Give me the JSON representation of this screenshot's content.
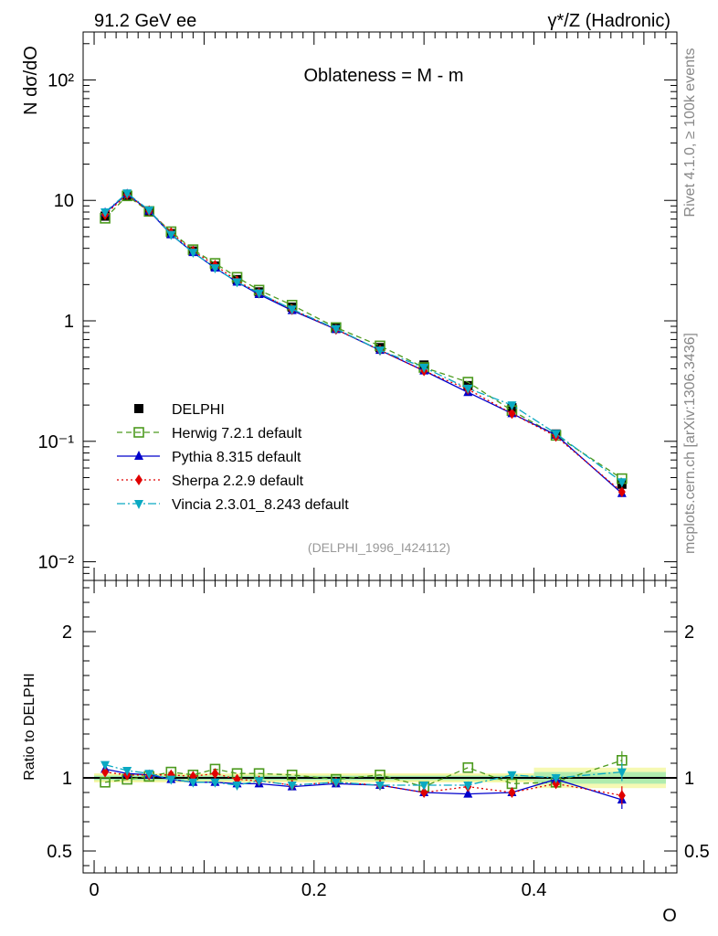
{
  "header": {
    "left": "91.2 GeV ee",
    "right": "γ*/Z (Hadronic)"
  },
  "side_labels": {
    "rivet": "Rivet 4.1.0, ≥ 100k events",
    "mcplots": "mcplots.cern.ch [arXiv:1306.3436]"
  },
  "chart_data": {
    "type": "line",
    "title": "Oblateness = M - m",
    "analysis_tag": "(DELPHI_1996_I424112)",
    "xlabel": "O",
    "ylabel": "N  dσ/dO",
    "ratio_ylabel": "Ratio to DELPHI",
    "xlim": [
      -0.01,
      0.53
    ],
    "ylim": [
      0.007,
      250
    ],
    "yscale": "log",
    "ratio_ylim": [
      0.35,
      2.35
    ],
    "x_ticks": [
      "0",
      "0.2",
      "0.4"
    ],
    "y_ticks": [
      "10⁻²",
      "10⁻¹",
      "1",
      "10",
      "10²"
    ],
    "ratio_ticks": [
      "0.5",
      "1",
      "2"
    ],
    "x": [
      0.01,
      0.03,
      0.05,
      0.07,
      0.09,
      0.11,
      0.13,
      0.15,
      0.18,
      0.22,
      0.26,
      0.3,
      0.34,
      0.38,
      0.42,
      0.48
    ],
    "series": [
      {
        "name": "DELPHI",
        "color": "#000000",
        "marker": "square-filled",
        "values": [
          7.4,
          11.0,
          8.0,
          5.3,
          3.8,
          2.85,
          2.2,
          1.74,
          1.3,
          0.88,
          0.6,
          0.43,
          0.29,
          0.19,
          0.115,
          0.044
        ]
      },
      {
        "name": "Herwig 7.2.1 default",
        "color": "#4c9a1e",
        "marker": "square-open",
        "dash": "6,4",
        "values": [
          7.1,
          10.9,
          8.1,
          5.5,
          3.9,
          3.0,
          2.3,
          1.8,
          1.35,
          0.88,
          0.62,
          0.41,
          0.31,
          0.18,
          0.112,
          0.049
        ]
      },
      {
        "name": "Pythia 8.315 default",
        "color": "#0000cc",
        "marker": "triangle-up",
        "dash": "",
        "values": [
          7.9,
          11.3,
          8.2,
          5.2,
          3.7,
          2.75,
          2.1,
          1.66,
          1.22,
          0.85,
          0.57,
          0.385,
          0.255,
          0.17,
          0.113,
          0.037
        ]
      },
      {
        "name": "Sherpa 2.2.9 default",
        "color": "#e00000",
        "marker": "diamond",
        "dash": "2,3",
        "values": [
          7.6,
          11.2,
          8.2,
          5.4,
          3.8,
          2.9,
          2.15,
          1.7,
          1.24,
          0.85,
          0.57,
          0.385,
          0.27,
          0.17,
          0.11,
          0.038
        ]
      },
      {
        "name": "Vincia 2.3.01_8.243 default",
        "color": "#0aa9c2",
        "marker": "triangle-down",
        "dash": "9,3,2,3",
        "values": [
          8.0,
          11.5,
          8.3,
          5.2,
          3.7,
          2.75,
          2.1,
          1.7,
          1.25,
          0.86,
          0.57,
          0.41,
          0.275,
          0.2,
          0.116,
          0.046
        ]
      }
    ],
    "ratios": [
      {
        "name": "Herwig 7.2.1 default",
        "values": [
          0.97,
          0.99,
          1.01,
          1.04,
          1.02,
          1.06,
          1.03,
          1.03,
          1.02,
          0.99,
          1.02,
          0.94,
          1.07,
          0.96,
          0.97,
          1.12
        ]
      },
      {
        "name": "Pythia 8.315 default",
        "values": [
          1.06,
          1.03,
          1.02,
          0.99,
          0.97,
          0.97,
          0.96,
          0.96,
          0.94,
          0.96,
          0.95,
          0.9,
          0.89,
          0.9,
          0.99,
          0.85
        ]
      },
      {
        "name": "Sherpa 2.2.9 default",
        "values": [
          1.04,
          1.02,
          1.02,
          1.02,
          1.01,
          1.03,
          0.99,
          0.98,
          0.95,
          0.97,
          0.95,
          0.9,
          0.94,
          0.9,
          0.96,
          0.88
        ]
      },
      {
        "name": "Vincia 2.3.01_8.243 default",
        "values": [
          1.09,
          1.05,
          1.03,
          0.99,
          0.97,
          0.97,
          0.95,
          0.98,
          0.95,
          0.97,
          0.95,
          0.95,
          0.95,
          1.02,
          1.0,
          1.04
        ]
      }
    ]
  }
}
